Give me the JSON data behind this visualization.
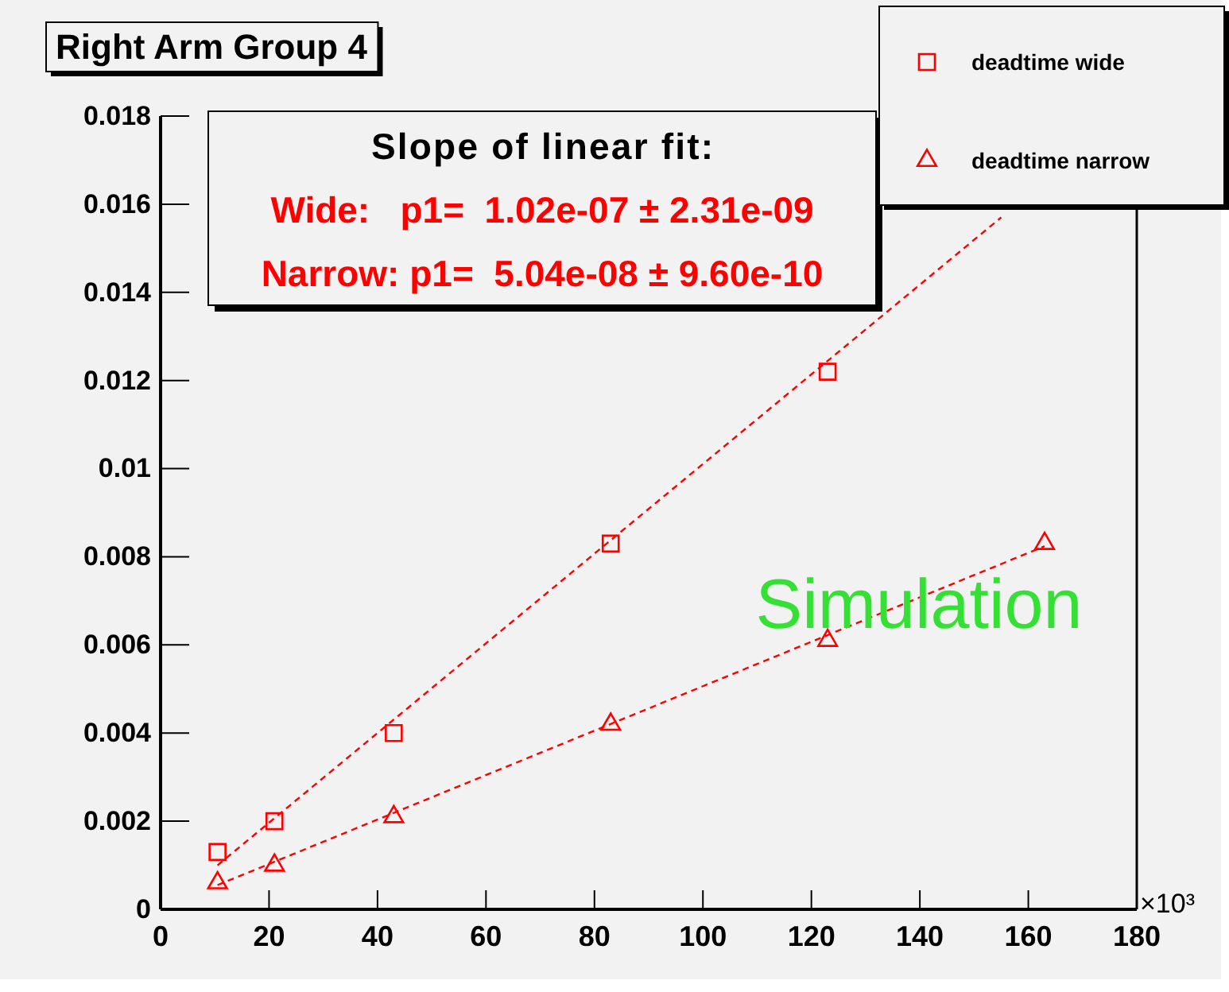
{
  "chart_data": {
    "type": "scatter",
    "title": "Right Arm Group 4",
    "xlabel": "×10³",
    "annotations": [
      "Slope of linear fit:",
      "Wide:   p1=  1.02e-07 ± 2.31e-09",
      "Narrow: p1=  5.04e-08 ± 9.60e-10",
      "Simulation"
    ],
    "series": [
      {
        "name": "deadtime wide",
        "color": "#ff0000",
        "marker": "square",
        "x": [
          10.5,
          21,
          43,
          83,
          123
        ],
        "values": [
          0.0013,
          0.002,
          0.004,
          0.0083,
          0.0122
        ]
      },
      {
        "name": "deadtime narrow",
        "color": "#ff0000",
        "marker": "triangle",
        "x": [
          10.5,
          21,
          43,
          83,
          123,
          163
        ],
        "values": [
          0.0006,
          0.001,
          0.0021,
          0.0042,
          0.0061,
          0.0083
        ]
      },
      {
        "type": "line",
        "color": "#ff0000",
        "marker": "none",
        "line_style": "dashed",
        "x": [
          10.5,
          155
        ],
        "values": [
          0.001,
          0.0157
        ]
      },
      {
        "type": "line",
        "color": "#ff0000",
        "marker": "none",
        "line_style": "dashed",
        "x": [
          10.5,
          163
        ],
        "values": [
          0.00055,
          0.00824
        ]
      }
    ],
    "xlim": [
      0,
      180
    ],
    "ylim": [
      0,
      0.018
    ],
    "xticks": [
      0,
      20,
      40,
      60,
      80,
      100,
      120,
      140,
      160,
      180
    ],
    "yticks": [
      0,
      0.002,
      0.004,
      0.006,
      0.008,
      0.01,
      0.012,
      0.014,
      0.016,
      0.018
    ],
    "grid": false,
    "legend": "top right"
  }
}
